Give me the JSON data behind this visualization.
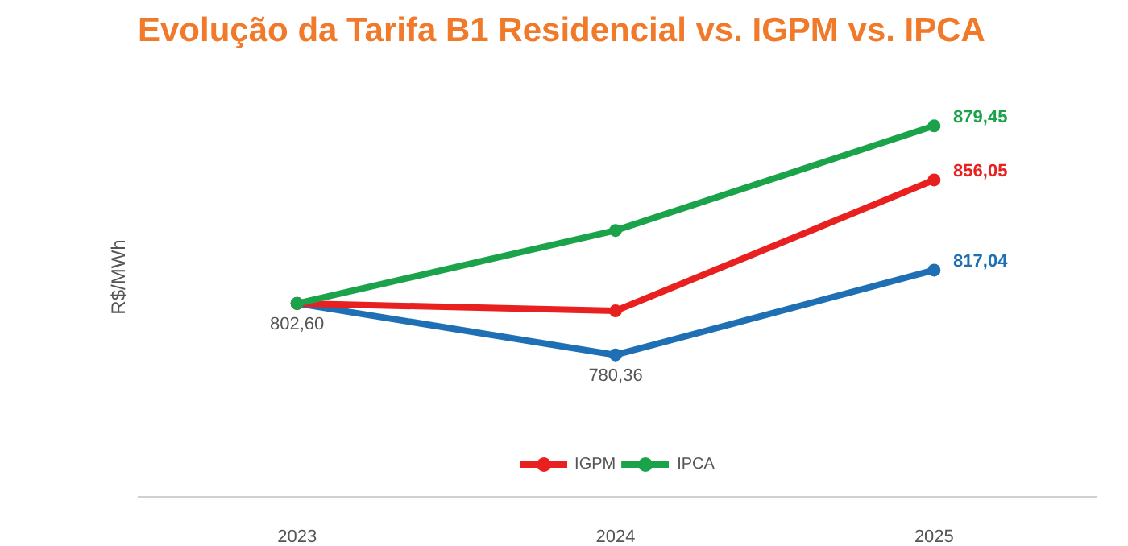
{
  "chart_data": {
    "type": "line",
    "title": "Evolução da Tarifa B1 Residencial vs. IGPM vs. IPCA",
    "ylabel": "R$/MWh",
    "categories": [
      "2023",
      "2024",
      "2025"
    ],
    "tick_labels": "x",
    "grid": false,
    "legend": "bottom",
    "marker": "circle",
    "line_style": "solid",
    "series": [
      {
        "color": "#1f6fb5",
        "values": [
          802.6,
          780.36,
          817.04
        ],
        "value_labels": [
          "802,60",
          "780,36",
          "817,04"
        ]
      },
      {
        "name": "IGPM",
        "color": "#e8201f",
        "values": [
          802.6,
          799.4,
          856.05
        ],
        "value_labels": [
          null,
          null,
          "856,05"
        ]
      },
      {
        "name": "IPCA",
        "color": "#1aa34a",
        "values": [
          802.6,
          834.2,
          879.45
        ],
        "value_labels": [
          null,
          null,
          "879,45"
        ]
      }
    ]
  }
}
